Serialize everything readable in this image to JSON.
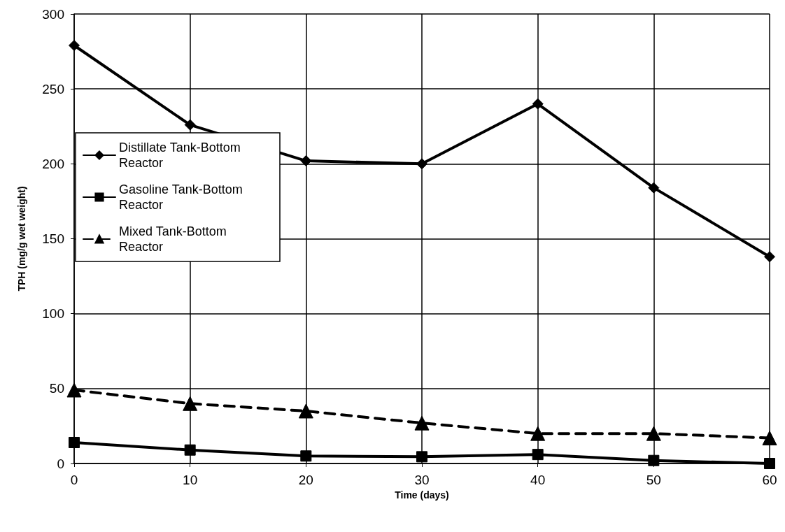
{
  "chart_data": {
    "type": "line",
    "xlabel": "Time (days)",
    "ylabel": "TPH (mg/g wet weight)",
    "x": [
      0,
      10,
      20,
      30,
      40,
      50,
      60
    ],
    "series": [
      {
        "name": "Distillate Tank-Bottom Reactor",
        "color": "#000000",
        "marker": "diamond",
        "line_style": "solid",
        "values": [
          279,
          226,
          202,
          200,
          240,
          184,
          138
        ]
      },
      {
        "name": "Gasoline Tank-Bottom Reactor",
        "color": "#000000",
        "marker": "square",
        "line_style": "solid",
        "values": [
          14,
          9,
          5,
          4.5,
          6,
          2,
          0
        ]
      },
      {
        "name": "Mixed Tank-Bottom Reactor",
        "color": "#000000",
        "marker": "triangle",
        "line_style": "dashed",
        "values": [
          49,
          40,
          35,
          27,
          20,
          20,
          17
        ]
      }
    ],
    "xlim": [
      0,
      60
    ],
    "xticks": [
      0,
      10,
      20,
      30,
      40,
      50,
      60
    ],
    "ylim": [
      0,
      300
    ],
    "yticks": [
      0,
      50,
      100,
      150,
      200,
      250,
      300
    ],
    "grid": true,
    "legend": "left"
  }
}
